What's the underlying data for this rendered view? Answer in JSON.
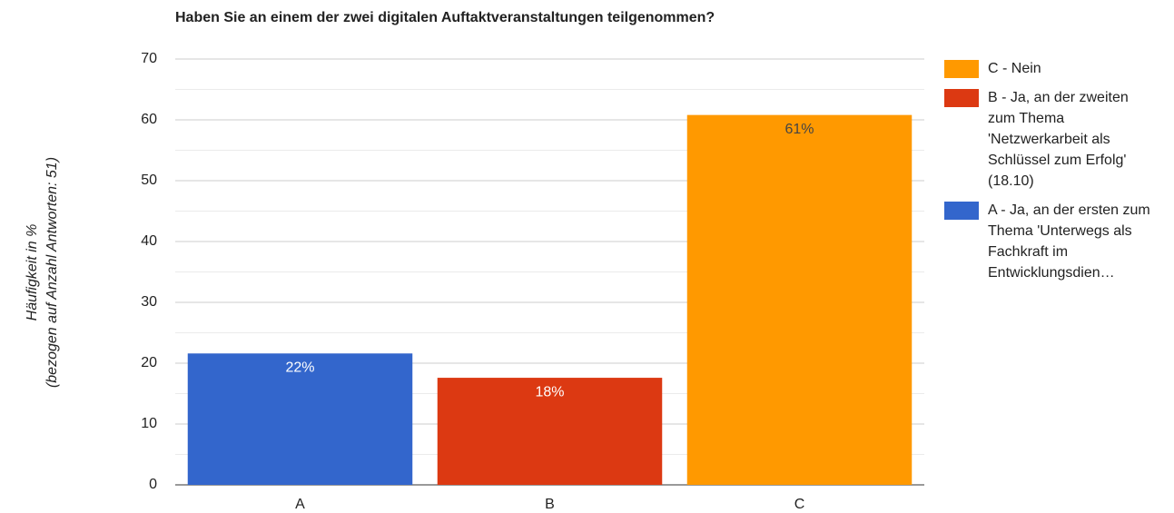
{
  "chart_data": {
    "type": "stacked_bar",
    "title": "Haben Sie an einem der zwei digitalen Auftaktveranstaltungen teilgenommen?",
    "y_label": [
      "Häufigkeit in %",
      "(bezogen auf Anzahl Antworten: 51)"
    ],
    "categories": [
      "A",
      "B",
      "C"
    ],
    "series": [
      {
        "name": "A - Ja, an der ersten zum Thema 'Unterwegs als Fachkraft im Entwicklungsdien…",
        "color": "#3366cc",
        "values": [
          21.6,
          null,
          null
        ],
        "value_labels": [
          "22%",
          null,
          null
        ]
      },
      {
        "name": "B - Ja, an der zweiten zum Thema 'Netzwerkarbeit als Schlüssel zum Erfolg' (18.10)",
        "color": "#dc3912",
        "values": [
          null,
          17.6,
          null
        ],
        "value_labels": [
          null,
          "18%",
          null
        ]
      },
      {
        "name": "C - Nein",
        "color": "#ff9900",
        "values": [
          null,
          null,
          60.8
        ],
        "value_labels": [
          null,
          null,
          "61%"
        ]
      }
    ],
    "ylim": [
      0,
      70
    ],
    "yticks": [
      0,
      10,
      20,
      30,
      40,
      50,
      60,
      70
    ],
    "minor_yticks": [
      5,
      15,
      25,
      35,
      45,
      55,
      65
    ],
    "grid": true,
    "legend": "right"
  }
}
